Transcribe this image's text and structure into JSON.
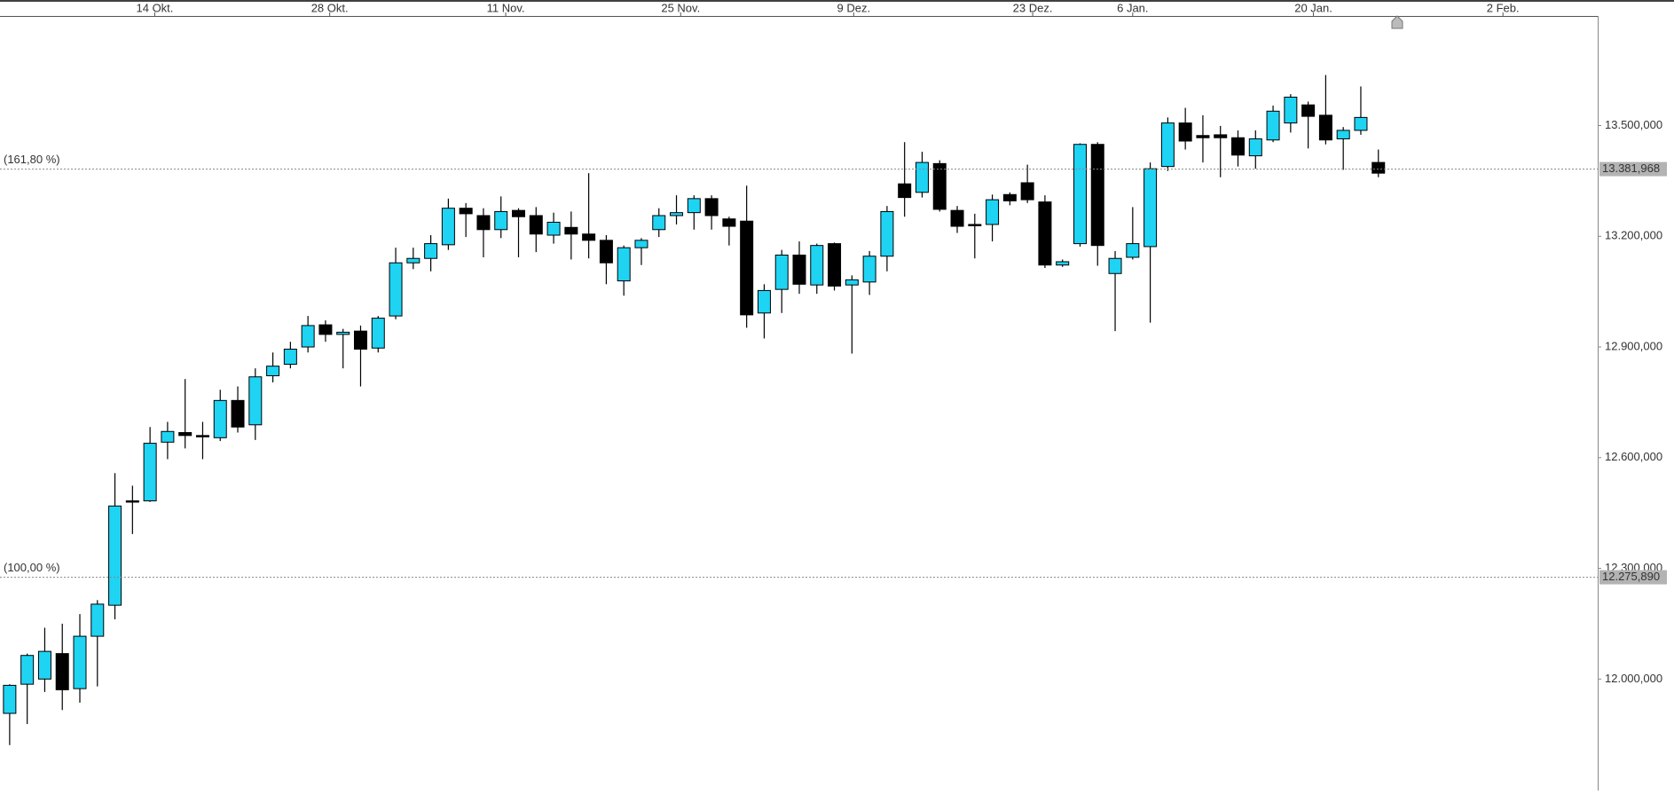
{
  "chart_data": {
    "type": "candlestick",
    "up_color": "#1fd3f3",
    "down_color": "#000000",
    "xlim": [
      -0.55,
      90.5
    ],
    "xticks": [
      {
        "value": 8.27,
        "label": "14 Okt."
      },
      {
        "value": 18.24,
        "label": "28 Okt."
      },
      {
        "value": 28.27,
        "label": "11 Nov."
      },
      {
        "value": 38.24,
        "label": "25 Nov."
      },
      {
        "value": 48.1,
        "label": "9 Dez."
      },
      {
        "value": 58.3,
        "label": "23 Dez."
      },
      {
        "value": 64.0,
        "label": "6 Jan."
      },
      {
        "value": 74.3,
        "label": "20 Jan."
      },
      {
        "value": 85.1,
        "label": "2 Feb."
      }
    ],
    "ylim": [
      11705,
      13797
    ],
    "yticks": [
      {
        "value": 12000,
        "label": "12.000,000"
      },
      {
        "value": 12300,
        "label": "12.300,000"
      },
      {
        "value": 12600,
        "label": "12.600,000"
      },
      {
        "value": 12900,
        "label": "12.900,000"
      },
      {
        "value": 13200,
        "label": "13.200,000"
      },
      {
        "value": 13500,
        "label": "13.500,000"
      }
    ],
    "levels": [
      {
        "name": "(161,80 %)",
        "value": 13381.968,
        "value_label": "13.381,968"
      },
      {
        "name": "(100,00 %)",
        "value": 12275.89,
        "value_label": "12.275,890"
      }
    ],
    "open": [
      11907,
      11986,
      12000,
      12069,
      11974,
      12116,
      12200,
      12483,
      12483,
      12642,
      12668,
      12660,
      12654,
      12755,
      12689,
      12822,
      12853,
      12900,
      12960,
      12934,
      12943,
      12897,
      12984,
      13128,
      13140,
      13177,
      13276,
      13256,
      13218,
      13270,
      13256,
      13203,
      13224,
      13206,
      13189,
      13079,
      13169,
      13218,
      13256,
      13264,
      13302,
      13247,
      13241,
      12992,
      13056,
      13149,
      13068,
      13180,
      13068,
      13076,
      13146,
      13342,
      13319,
      13397,
      13270,
      13232,
      13232,
      13313,
      13345,
      13293,
      13122,
      13180,
      13449,
      13099,
      13143,
      13172,
      13389,
      13507,
      13473,
      13475,
      13467,
      13418,
      13461,
      13507,
      13556,
      13528,
      13464,
      13487,
      13400
    ],
    "high": [
      11986,
      12069,
      12139,
      12150,
      12176,
      12214,
      12558,
      12524,
      12683,
      12697,
      12813,
      12697,
      12784,
      12793,
      12842,
      12885,
      12914,
      12984,
      12972,
      12949,
      12958,
      12984,
      13169,
      13169,
      13203,
      13302,
      13290,
      13276,
      13308,
      13276,
      13279,
      13264,
      13267,
      13371,
      13203,
      13175,
      13195,
      13276,
      13311,
      13311,
      13311,
      13253,
      13337,
      13070,
      13163,
      13186,
      13180,
      13183,
      13094,
      13160,
      13282,
      13455,
      13429,
      13406,
      13282,
      13261,
      13313,
      13319,
      13394,
      13311,
      13137,
      13452,
      13455,
      13160,
      13279,
      13400,
      13522,
      13548,
      13528,
      13499,
      13487,
      13487,
      13554,
      13585,
      13565,
      13637,
      13496,
      13606,
      13435
    ],
    "low": [
      11821,
      11878,
      11965,
      11916,
      11936,
      11980,
      12162,
      12393,
      12480,
      12596,
      12625,
      12596,
      12645,
      12668,
      12648,
      12804,
      12842,
      12885,
      12914,
      12842,
      12793,
      12885,
      12975,
      13111,
      13105,
      13163,
      13198,
      13143,
      13195,
      13143,
      13157,
      13180,
      13137,
      13140,
      13070,
      13039,
      13122,
      13198,
      13232,
      13218,
      13218,
      13175,
      12952,
      12923,
      12992,
      13044,
      13044,
      13053,
      12882,
      13041,
      13105,
      13253,
      13305,
      13267,
      13209,
      13140,
      13186,
      13284,
      13290,
      13114,
      13117,
      13172,
      13120,
      12943,
      13137,
      12966,
      13377,
      13435,
      13400,
      13360,
      13389,
      13383,
      13455,
      13481,
      13438,
      13449,
      13380,
      13475,
      13360
    ],
    "close": [
      11983,
      12064,
      12075,
      11971,
      12116,
      12203,
      12469,
      12480,
      12639,
      12671,
      12660,
      12657,
      12755,
      12683,
      12819,
      12848,
      12894,
      12958,
      12934,
      12940,
      12894,
      12978,
      13128,
      13140,
      13180,
      13276,
      13261,
      13218,
      13267,
      13253,
      13206,
      13238,
      13206,
      13189,
      13128,
      13169,
      13189,
      13256,
      13264,
      13302,
      13256,
      13227,
      12987,
      13053,
      13149,
      13070,
      13175,
      13065,
      13082,
      13146,
      13267,
      13305,
      13400,
      13273,
      13227,
      13229,
      13299,
      13296,
      13299,
      13122,
      13131,
      13449,
      13175,
      13140,
      13180,
      13383,
      13507,
      13458,
      13467,
      13467,
      13420,
      13464,
      13539,
      13577,
      13525,
      13461,
      13487,
      13522,
      13371
    ]
  }
}
